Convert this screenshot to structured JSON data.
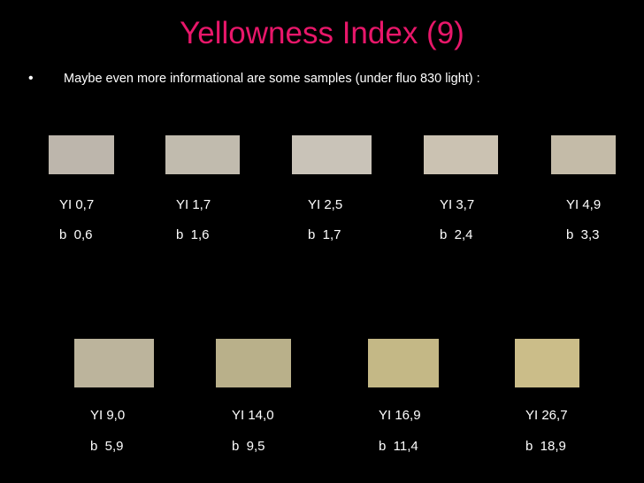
{
  "title": "Yellowness Index (9)",
  "bullet": "Maybe even more informational are some samples (under fluo 830 light) :",
  "samples": [
    {
      "yi": "YI 0,7",
      "b": "b  0,6"
    },
    {
      "yi": "YI 1,7",
      "b": "b  1,6"
    },
    {
      "yi": "YI 2,5",
      "b": "b  1,7"
    },
    {
      "yi": "YI 3,7",
      "b": "b  2,4"
    },
    {
      "yi": "YI 4,9",
      "b": "b  3,3"
    },
    {
      "yi": "YI 9,0",
      "b": "b  5,9"
    },
    {
      "yi": "YI 14,0",
      "b": "b  9,5"
    },
    {
      "yi": "YI 16,9",
      "b": "b  11,4"
    },
    {
      "yi": "YI 26,7",
      "b": "b  18,9"
    }
  ]
}
